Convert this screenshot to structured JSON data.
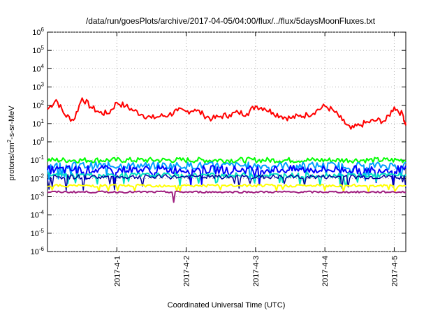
{
  "chart_data": {
    "type": "line",
    "title": "/data/run/goesPlots/archive/2017-04-05/04:00/flux/../flux/5daysMoonFluxes.txt",
    "xlabel": "Coordinated Universal Time (UTC)",
    "ylabel_parts": [
      "protons/cm",
      "2",
      "-s-sr-MeV"
    ],
    "y_scale": "log",
    "ylim": [
      1e-06,
      1000000.0
    ],
    "y_ticks": [
      {
        "base": "10",
        "exp": "-6",
        "value": 1e-06
      },
      {
        "base": "10",
        "exp": "-5",
        "value": 1e-05
      },
      {
        "base": "10",
        "exp": "-4",
        "value": 0.0001
      },
      {
        "base": "10",
        "exp": "-3",
        "value": 0.001
      },
      {
        "base": "10",
        "exp": "-2",
        "value": 0.01
      },
      {
        "base": "10",
        "exp": "-1",
        "value": 0.1
      },
      {
        "base": "10",
        "exp": "0",
        "value": 1
      },
      {
        "base": "10",
        "exp": "1",
        "value": 10
      },
      {
        "base": "10",
        "exp": "2",
        "value": 100
      },
      {
        "base": "10",
        "exp": "3",
        "value": 1000
      },
      {
        "base": "10",
        "exp": "4",
        "value": 10000
      },
      {
        "base": "10",
        "exp": "5",
        "value": 100000
      },
      {
        "base": "10",
        "exp": "6",
        "value": 1000000
      }
    ],
    "x_range_days": [
      "2017-03-31T00:00",
      "2017-04-05T04:00"
    ],
    "x_ticks": [
      {
        "label": "2017-4-1",
        "value": "2017-04-01T00:00"
      },
      {
        "label": "2017-4-2",
        "value": "2017-04-02T00:00"
      },
      {
        "label": "2017-4-3",
        "value": "2017-04-03T00:00"
      },
      {
        "label": "2017-4-4",
        "value": "2017-04-04T00:00"
      },
      {
        "label": "2017-4-5",
        "value": "2017-04-05T00:00"
      }
    ],
    "grid": true,
    "series": [
      {
        "color": "#ff0000",
        "base": 30,
        "noise": 0.35,
        "width": 2,
        "x": [
          "2017-03-31T00:00",
          "2017-03-31T03:00",
          "2017-03-31T06:00",
          "2017-03-31T09:00",
          "2017-03-31T12:00",
          "2017-03-31T15:00",
          "2017-03-31T18:00",
          "2017-03-31T21:00",
          "2017-04-01T00:00",
          "2017-04-01T03:00",
          "2017-04-01T06:00",
          "2017-04-01T09:00",
          "2017-04-01T12:00",
          "2017-04-01T15:00",
          "2017-04-01T18:00",
          "2017-04-01T21:00",
          "2017-04-02T00:00",
          "2017-04-02T03:00",
          "2017-04-02T06:00",
          "2017-04-02T09:00",
          "2017-04-02T12:00",
          "2017-04-02T15:00",
          "2017-04-02T18:00",
          "2017-04-02T21:00",
          "2017-04-03T00:00",
          "2017-04-03T03:00",
          "2017-04-03T06:00",
          "2017-04-03T09:00",
          "2017-04-03T12:00",
          "2017-04-03T15:00",
          "2017-04-03T18:00",
          "2017-04-03T21:00",
          "2017-04-04T00:00",
          "2017-04-04T03:00",
          "2017-04-04T06:00",
          "2017-04-04T09:00",
          "2017-04-04T12:00",
          "2017-04-04T15:00",
          "2017-04-04T18:00",
          "2017-04-04T21:00",
          "2017-04-05T00:00",
          "2017-04-05T03:00",
          "2017-04-05T04:00"
        ],
        "y": [
          60,
          200,
          30,
          15,
          250,
          80,
          40,
          35,
          140,
          90,
          50,
          30,
          20,
          25,
          30,
          50,
          45,
          60,
          30,
          18,
          25,
          30,
          40,
          35,
          90,
          70,
          40,
          25,
          20,
          25,
          30,
          50,
          90,
          50,
          15,
          5,
          8,
          12,
          15,
          14,
          80,
          30,
          8
        ]
      },
      {
        "color": "#00ff00",
        "base": 0.1,
        "noise": 0.3,
        "width": 2,
        "x": [],
        "y": []
      },
      {
        "color": "#00a0ff",
        "base": 0.05,
        "noise": 0.4,
        "width": 2,
        "x": [],
        "y": []
      },
      {
        "color": "#0000ff",
        "base": 0.03,
        "noise": 0.45,
        "width": 2,
        "x": [],
        "y": []
      },
      {
        "color": "#00e0c0",
        "base": 0.015,
        "noise": 0.25,
        "width": 2,
        "x": [],
        "y": []
      },
      {
        "color": "#0000a0",
        "base": 0.012,
        "noise": 0.25,
        "width": 1.5,
        "x": [],
        "y": []
      },
      {
        "color": "#ffff00",
        "base": 0.004,
        "noise": 0.15,
        "width": 2,
        "x": [],
        "y": []
      },
      {
        "color": "#a02080",
        "base": 0.0018,
        "noise": 0.1,
        "width": 2,
        "x": [],
        "y": []
      }
    ]
  }
}
